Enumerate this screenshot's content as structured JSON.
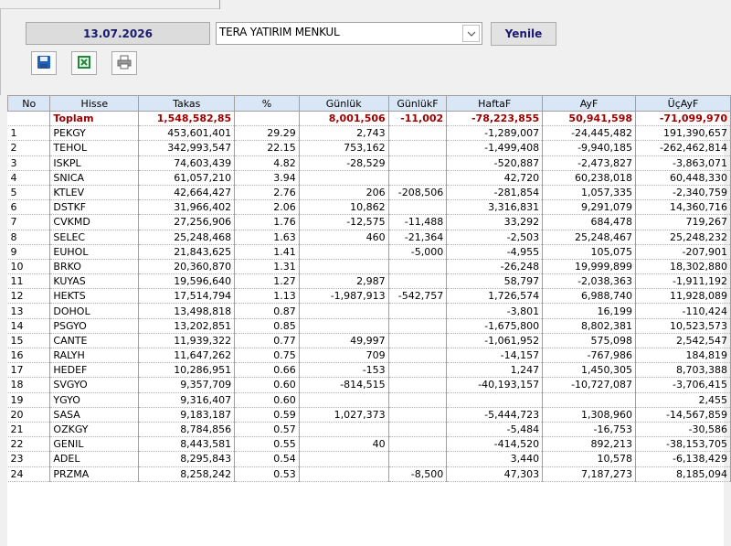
{
  "header": {
    "date": "13.07.2026",
    "broker": "TERA YATIRIM MENKUL",
    "refresh_label": "Yenile"
  },
  "toolbar": {
    "icons": [
      "save-icon",
      "excel-icon",
      "print-icon"
    ]
  },
  "table": {
    "columns": [
      "No",
      "Hisse",
      "Takas",
      "%",
      "Günlük",
      "GünlükF",
      "HaftaF",
      "AyF",
      "ÜçAyF"
    ],
    "total": {
      "label": "Toplam",
      "takas": "1,548,582,85",
      "pct": "",
      "gunluk": "8,001,506",
      "gunlukf": "-11,002",
      "haftaf": "-78,223,855",
      "ayf": "50,941,598",
      "ucayf": "-71,099,970"
    },
    "rows": [
      {
        "no": "1",
        "hisse": "PEKGY",
        "takas": "453,601,401",
        "pct": "29.29",
        "gunluk": "2,743",
        "gunlukf": "",
        "haftaf": "-1,289,007",
        "ayf": "-24,445,482",
        "ucayf": "191,390,657"
      },
      {
        "no": "2",
        "hisse": "TEHOL",
        "takas": "342,993,547",
        "pct": "22.15",
        "gunluk": "753,162",
        "gunlukf": "",
        "haftaf": "-1,499,408",
        "ayf": "-9,940,185",
        "ucayf": "-262,462,814"
      },
      {
        "no": "3",
        "hisse": "ISKPL",
        "takas": "74,603,439",
        "pct": "4.82",
        "gunluk": "-28,529",
        "gunlukf": "",
        "haftaf": "-520,887",
        "ayf": "-2,473,827",
        "ucayf": "-3,863,071"
      },
      {
        "no": "4",
        "hisse": "SNICA",
        "takas": "61,057,210",
        "pct": "3.94",
        "gunluk": "",
        "gunlukf": "",
        "haftaf": "42,720",
        "ayf": "60,238,018",
        "ucayf": "60,448,330"
      },
      {
        "no": "5",
        "hisse": "KTLEV",
        "takas": "42,664,427",
        "pct": "2.76",
        "gunluk": "206",
        "gunlukf": "-208,506",
        "haftaf": "-281,854",
        "ayf": "1,057,335",
        "ucayf": "-2,340,759"
      },
      {
        "no": "6",
        "hisse": "DSTKF",
        "takas": "31,966,402",
        "pct": "2.06",
        "gunluk": "10,862",
        "gunlukf": "",
        "haftaf": "3,316,831",
        "ayf": "9,291,079",
        "ucayf": "14,360,716"
      },
      {
        "no": "7",
        "hisse": "CVKMD",
        "takas": "27,256,906",
        "pct": "1.76",
        "gunluk": "-12,575",
        "gunlukf": "-11,488",
        "haftaf": "33,292",
        "ayf": "684,478",
        "ucayf": "719,267"
      },
      {
        "no": "8",
        "hisse": "SELEC",
        "takas": "25,248,468",
        "pct": "1.63",
        "gunluk": "460",
        "gunlukf": "-21,364",
        "haftaf": "-2,503",
        "ayf": "25,248,467",
        "ucayf": "25,248,232"
      },
      {
        "no": "9",
        "hisse": "EUHOL",
        "takas": "21,843,625",
        "pct": "1.41",
        "gunluk": "",
        "gunlukf": "-5,000",
        "haftaf": "-4,955",
        "ayf": "105,075",
        "ucayf": "-207,901"
      },
      {
        "no": "10",
        "hisse": "BRKO",
        "takas": "20,360,870",
        "pct": "1.31",
        "gunluk": "",
        "gunlukf": "",
        "haftaf": "-26,248",
        "ayf": "19,999,899",
        "ucayf": "18,302,880"
      },
      {
        "no": "11",
        "hisse": "KUYAS",
        "takas": "19,596,640",
        "pct": "1.27",
        "gunluk": "2,987",
        "gunlukf": "",
        "haftaf": "58,797",
        "ayf": "-2,038,363",
        "ucayf": "-1,911,192"
      },
      {
        "no": "12",
        "hisse": "HEKTS",
        "takas": "17,514,794",
        "pct": "1.13",
        "gunluk": "-1,987,913",
        "gunlukf": "-542,757",
        "haftaf": "1,726,574",
        "ayf": "6,988,740",
        "ucayf": "11,928,089"
      },
      {
        "no": "13",
        "hisse": "DOHOL",
        "takas": "13,498,818",
        "pct": "0.87",
        "gunluk": "",
        "gunlukf": "",
        "haftaf": "-3,801",
        "ayf": "16,199",
        "ucayf": "-110,424"
      },
      {
        "no": "14",
        "hisse": "PSGYO",
        "takas": "13,202,851",
        "pct": "0.85",
        "gunluk": "",
        "gunlukf": "",
        "haftaf": "-1,675,800",
        "ayf": "8,802,381",
        "ucayf": "10,523,573"
      },
      {
        "no": "15",
        "hisse": "CANTE",
        "takas": "11,939,322",
        "pct": "0.77",
        "gunluk": "49,997",
        "gunlukf": "",
        "haftaf": "-1,061,952",
        "ayf": "575,098",
        "ucayf": "2,542,547"
      },
      {
        "no": "16",
        "hisse": "RALYH",
        "takas": "11,647,262",
        "pct": "0.75",
        "gunluk": "709",
        "gunlukf": "",
        "haftaf": "-14,157",
        "ayf": "-767,986",
        "ucayf": "184,819"
      },
      {
        "no": "17",
        "hisse": "HEDEF",
        "takas": "10,286,951",
        "pct": "0.66",
        "gunluk": "-153",
        "gunlukf": "",
        "haftaf": "1,247",
        "ayf": "1,450,305",
        "ucayf": "8,703,388"
      },
      {
        "no": "18",
        "hisse": "SVGYO",
        "takas": "9,357,709",
        "pct": "0.60",
        "gunluk": "-814,515",
        "gunlukf": "",
        "haftaf": "-40,193,157",
        "ayf": "-10,727,087",
        "ucayf": "-3,706,415"
      },
      {
        "no": "19",
        "hisse": "YGYO",
        "takas": "9,316,407",
        "pct": "0.60",
        "gunluk": "",
        "gunlukf": "",
        "haftaf": "",
        "ayf": "",
        "ucayf": "2,455"
      },
      {
        "no": "20",
        "hisse": "SASA",
        "takas": "9,183,187",
        "pct": "0.59",
        "gunluk": "1,027,373",
        "gunlukf": "",
        "haftaf": "-5,444,723",
        "ayf": "1,308,960",
        "ucayf": "-14,567,859"
      },
      {
        "no": "21",
        "hisse": "OZKGY",
        "takas": "8,784,856",
        "pct": "0.57",
        "gunluk": "",
        "gunlukf": "",
        "haftaf": "-5,484",
        "ayf": "-16,753",
        "ucayf": "-30,586"
      },
      {
        "no": "22",
        "hisse": "GENIL",
        "takas": "8,443,581",
        "pct": "0.55",
        "gunluk": "40",
        "gunlukf": "",
        "haftaf": "-414,520",
        "ayf": "892,213",
        "ucayf": "-38,153,705"
      },
      {
        "no": "23",
        "hisse": "ADEL",
        "takas": "8,295,843",
        "pct": "0.54",
        "gunluk": "",
        "gunlukf": "",
        "haftaf": "3,440",
        "ayf": "10,578",
        "ucayf": "-6,138,429"
      },
      {
        "no": "24",
        "hisse": "PRZMA",
        "takas": "8,258,242",
        "pct": "0.53",
        "gunluk": "",
        "gunlukf": "-8,500",
        "haftaf": "47,303",
        "ayf": "7,187,273",
        "ucayf": "8,185,094"
      }
    ]
  }
}
